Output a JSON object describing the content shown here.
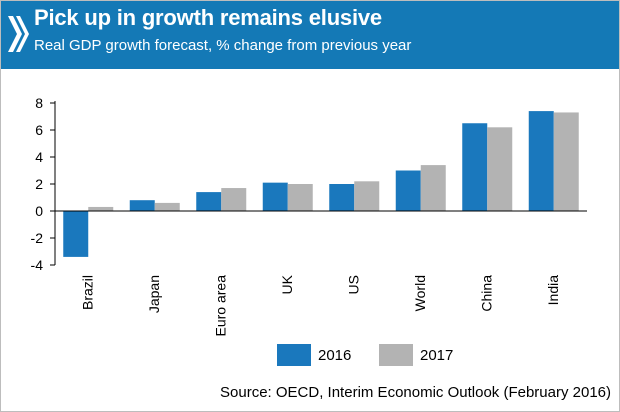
{
  "header": {
    "title": "Pick up in growth remains elusive",
    "subtitle": "Real GDP growth forecast, % change from previous year"
  },
  "colors": {
    "header_bg": "#1479b6",
    "series_2016": "#1a78bd",
    "series_2017": "#b3b3b3",
    "axis": "#000000"
  },
  "chart_data": {
    "type": "bar",
    "categories": [
      "Brazil",
      "Japan",
      "Euro area",
      "UK",
      "US",
      "World",
      "China",
      "India"
    ],
    "series": [
      {
        "name": "2016",
        "values": [
          -3.4,
          0.8,
          1.4,
          2.1,
          2.0,
          3.0,
          6.5,
          7.4
        ]
      },
      {
        "name": "2017",
        "values": [
          0.3,
          0.6,
          1.7,
          2.0,
          2.2,
          3.4,
          6.2,
          7.3
        ]
      }
    ],
    "title": "Pick up in growth remains elusive",
    "subtitle": "Real GDP growth forecast, % change from previous year",
    "xlabel": "",
    "ylabel": "",
    "ylim": [
      -4,
      8
    ],
    "yticks": [
      8,
      6,
      4,
      2,
      0,
      -2,
      -4
    ],
    "grid": false,
    "legend_position": "bottom"
  },
  "legend": {
    "items": [
      {
        "label": "2016"
      },
      {
        "label": "2017"
      }
    ]
  },
  "source": "Source: OECD, Interim Economic Outlook (February 2016)"
}
